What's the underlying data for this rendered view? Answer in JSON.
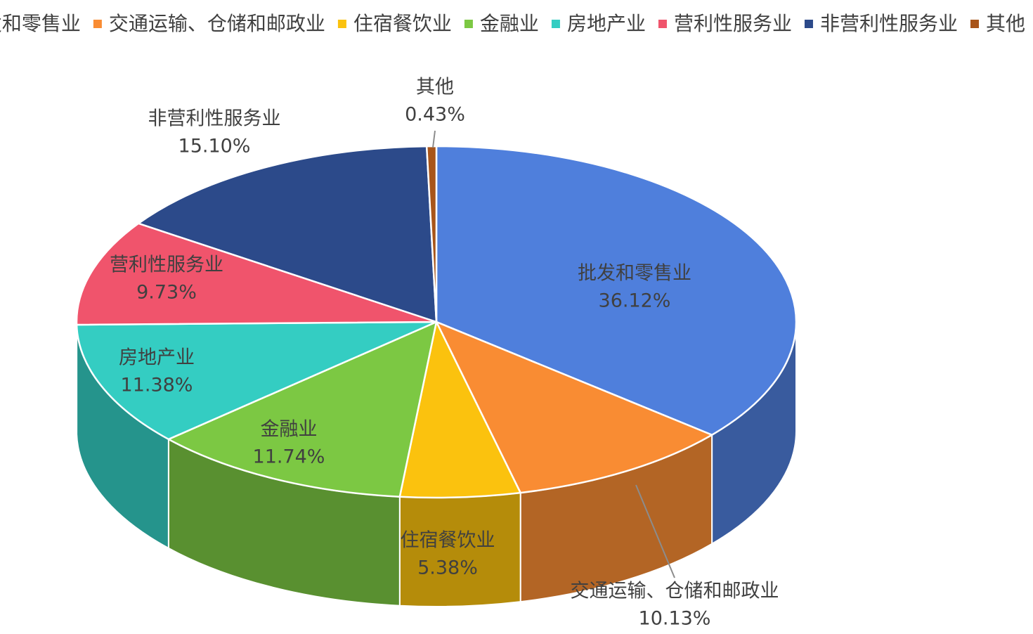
{
  "chart_data": {
    "type": "pie3d",
    "categories": [
      "批发和零售业",
      "交通运输、仓储和邮政业",
      "住宿餐饮业",
      "金融业",
      "房地产业",
      "营利性服务业",
      "非营利性服务业",
      "其他"
    ],
    "values": [
      36.12,
      10.13,
      5.38,
      11.74,
      11.38,
      9.73,
      15.1,
      0.43
    ],
    "value_labels": [
      "36.12%",
      "10.13%",
      "5.38%",
      "11.74%",
      "11.38%",
      "9.73%",
      "15.10%",
      "0.43%"
    ],
    "colors": [
      "#4f7fdc",
      "#f98c33",
      "#fbc20e",
      "#7cc843",
      "#34cdc2",
      "#f0546c",
      "#2c4a8a",
      "#a8551a"
    ],
    "legend": "top"
  }
}
